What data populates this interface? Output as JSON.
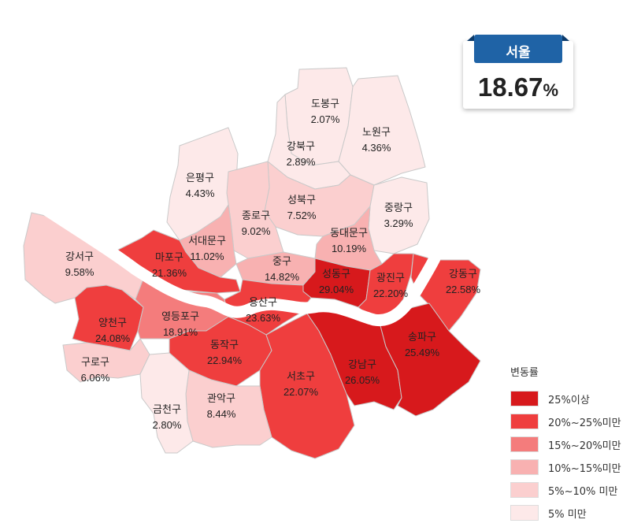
{
  "summary": {
    "title": "서울",
    "value": "18.67",
    "unit": "%"
  },
  "legend": {
    "title": "변동률",
    "items": [
      {
        "label": "25%이상",
        "color": "#d7191c"
      },
      {
        "label": "20%~25%미만",
        "color": "#ef3e3e"
      },
      {
        "label": "15%~20%미만",
        "color": "#f47c7c"
      },
      {
        "label": "10%~15%미만",
        "color": "#f8b1b1"
      },
      {
        "label": "5%~10% 미만",
        "color": "#fbcfcf"
      },
      {
        "label": "5% 미만",
        "color": "#fde9e9"
      }
    ]
  },
  "districts": [
    {
      "id": "dobong",
      "name": "도봉구",
      "value": "2.07%"
    },
    {
      "id": "nowon",
      "name": "노원구",
      "value": "4.36%"
    },
    {
      "id": "gangbuk",
      "name": "강북구",
      "value": "2.89%"
    },
    {
      "id": "eunpyeong",
      "name": "은평구",
      "value": "4.43%"
    },
    {
      "id": "seongbuk",
      "name": "성북구",
      "value": "7.52%"
    },
    {
      "id": "jongno",
      "name": "종로구",
      "value": "9.02%"
    },
    {
      "id": "jungnang",
      "name": "중랑구",
      "value": "3.29%"
    },
    {
      "id": "dongdaemun",
      "name": "동대문구",
      "value": "10.19%"
    },
    {
      "id": "seodaemun",
      "name": "서대문구",
      "value": "11.02%"
    },
    {
      "id": "gangseo",
      "name": "강서구",
      "value": "9.58%"
    },
    {
      "id": "mapo",
      "name": "마포구",
      "value": "21.36%"
    },
    {
      "id": "jung",
      "name": "중구",
      "value": "14.82%"
    },
    {
      "id": "seongdong",
      "name": "성동구",
      "value": "29.04%"
    },
    {
      "id": "gwangjin",
      "name": "광진구",
      "value": "22.20%"
    },
    {
      "id": "gangdong",
      "name": "강동구",
      "value": "22.58%"
    },
    {
      "id": "yongsan",
      "name": "용산구",
      "value": "23.63%"
    },
    {
      "id": "yangcheon",
      "name": "양천구",
      "value": "24.08%"
    },
    {
      "id": "yeongdeungpo",
      "name": "영등포구",
      "value": "18.91%"
    },
    {
      "id": "songpa",
      "name": "송파구",
      "value": "25.49%"
    },
    {
      "id": "dongjak",
      "name": "동작구",
      "value": "22.94%"
    },
    {
      "id": "guro",
      "name": "구로구",
      "value": "6.06%"
    },
    {
      "id": "gangnam",
      "name": "강남구",
      "value": "26.05%"
    },
    {
      "id": "seocho",
      "name": "서초구",
      "value": "22.07%"
    },
    {
      "id": "gwanak",
      "name": "관악구",
      "value": "8.44%"
    },
    {
      "id": "geumcheon",
      "name": "금천구",
      "value": "2.80%"
    }
  ]
}
